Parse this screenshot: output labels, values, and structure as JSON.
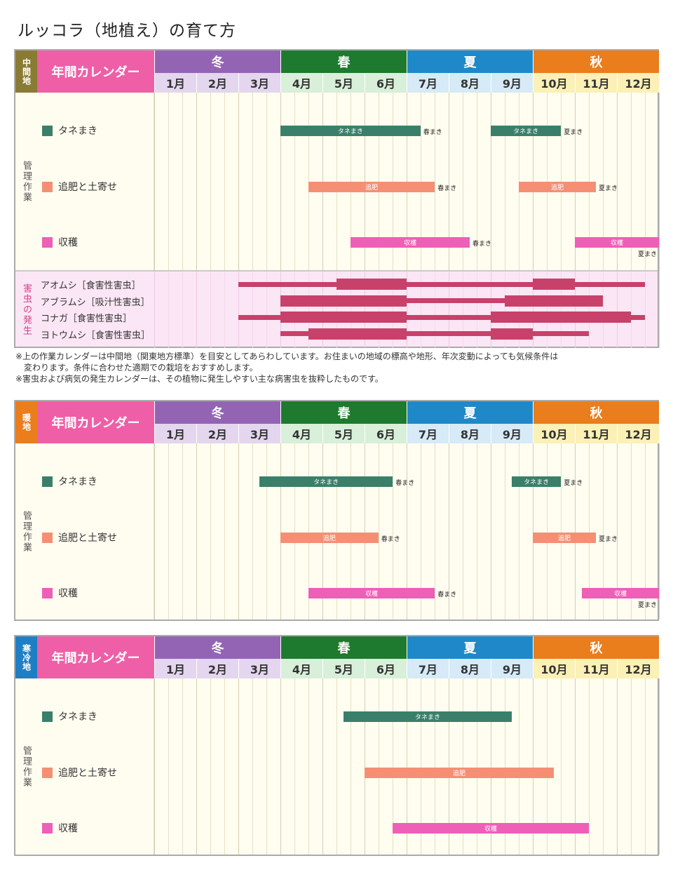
{
  "page_title": "ルッコラ（地植え）の育て方",
  "calendar_header": "年間カレンダー",
  "seasons": [
    {
      "label": "冬",
      "color": "#9464b4",
      "months": [
        1,
        2,
        3
      ]
    },
    {
      "label": "春",
      "color": "#1d7a2e",
      "months": [
        4,
        5,
        6
      ]
    },
    {
      "label": "夏",
      "color": "#1f88c8",
      "months": [
        7,
        8,
        9
      ]
    },
    {
      "label": "秋",
      "color": "#ea7d1c",
      "months": [
        10,
        11,
        12
      ]
    }
  ],
  "month_labels": [
    "1月",
    "2月",
    "3月",
    "4月",
    "5月",
    "6月",
    "7月",
    "8月",
    "9月",
    "10月",
    "11月",
    "12月"
  ],
  "month_bg": [
    "#e3d6ee",
    "#e3d6ee",
    "#e3d6ee",
    "#d8efd9",
    "#d8efd9",
    "#d8efd9",
    "#d6eaf7",
    "#d6eaf7",
    "#d6eaf7",
    "#fbf0b5",
    "#fbf0b5",
    "#fbf0b5"
  ],
  "side_label_tasks": "管理作業",
  "side_label_pests": "害虫の発生",
  "task_names": [
    "タネまき",
    "追肥と土寄せ",
    "収穫"
  ],
  "task_colors": [
    "#3a7f6a",
    "#f58f74",
    "#ee5fb7"
  ],
  "footnotes": [
    "※上の作業カレンダーは中間地（関東地方標準）を目安としてあらわしています。お住まいの地域の標高や地形、年次変動によっても気候条件は",
    "　変わります。条件に合わせた適期での栽培をおすすめします。",
    "※害虫および病気の発生カレンダーは、その植物に発生しやすい主な病害虫を抜粋したものです。"
  ],
  "chart_data": [
    {
      "type": "table",
      "region": "中間地",
      "region_color": "#8a7b34",
      "tasks": [
        {
          "name": "タネまき",
          "periods": [
            {
              "label": "タネまき",
              "start": 4.0,
              "end": 7.33,
              "note": "春まき"
            },
            {
              "label": "タネまき",
              "start": 9.0,
              "end": 10.67,
              "note": "夏まき"
            }
          ]
        },
        {
          "name": "追肥と土寄せ",
          "periods": [
            {
              "label": "追肥",
              "start": 4.67,
              "end": 7.67,
              "note": "春まき"
            },
            {
              "label": "追肥",
              "start": 9.67,
              "end": 11.5,
              "note": "夏まき"
            }
          ]
        },
        {
          "name": "収穫",
          "periods": [
            {
              "label": "収穫",
              "start": 5.67,
              "end": 8.5,
              "note": "春まき"
            },
            {
              "label": "収穫",
              "start": 11.0,
              "end": 13.0,
              "note": "夏まき"
            }
          ]
        }
      ],
      "pests": [
        {
          "name": "アオムシ［食害性害虫］",
          "ranges": [
            {
              "start": 3.0,
              "end": 12.67,
              "level": "low"
            },
            {
              "start": 5.33,
              "end": 7.0,
              "level": "high"
            },
            {
              "start": 10.0,
              "end": 11.0,
              "level": "high"
            }
          ]
        },
        {
          "name": "アブラムシ［吸汁性害虫］",
          "ranges": [
            {
              "start": 4.0,
              "end": 11.67,
              "level": "low"
            },
            {
              "start": 4.0,
              "end": 7.0,
              "level": "high"
            },
            {
              "start": 9.33,
              "end": 11.67,
              "level": "high"
            }
          ]
        },
        {
          "name": "コナガ［食害性害虫］",
          "ranges": [
            {
              "start": 3.0,
              "end": 12.67,
              "level": "low"
            },
            {
              "start": 4.0,
              "end": 7.0,
              "level": "high"
            },
            {
              "start": 9.0,
              "end": 12.33,
              "level": "high"
            }
          ]
        },
        {
          "name": "ヨトウムシ［食害性害虫］",
          "ranges": [
            {
              "start": 4.0,
              "end": 11.33,
              "level": "low"
            },
            {
              "start": 4.67,
              "end": 7.0,
              "level": "high"
            },
            {
              "start": 9.0,
              "end": 10.0,
              "level": "high"
            }
          ]
        }
      ]
    },
    {
      "type": "table",
      "region": "暖地",
      "region_color": "#ea7d1c",
      "tasks": [
        {
          "name": "タネまき",
          "periods": [
            {
              "label": "タネまき",
              "start": 3.5,
              "end": 6.67,
              "note": "春まき"
            },
            {
              "label": "タネまき",
              "start": 9.5,
              "end": 10.67,
              "note": "夏まき"
            }
          ]
        },
        {
          "name": "追肥と土寄せ",
          "periods": [
            {
              "label": "追肥",
              "start": 4.0,
              "end": 6.33,
              "note": "春まき"
            },
            {
              "label": "追肥",
              "start": 10.0,
              "end": 11.5,
              "note": "夏まき"
            }
          ]
        },
        {
          "name": "収穫",
          "periods": [
            {
              "label": "収穫",
              "start": 4.67,
              "end": 7.67,
              "note": "春まき"
            },
            {
              "label": "収穫",
              "start": 11.17,
              "end": 13.0,
              "note": "夏まき"
            }
          ]
        }
      ],
      "pests": []
    },
    {
      "type": "table",
      "region": "寒冷地",
      "region_color": "#1f7fc4",
      "tasks": [
        {
          "name": "タネまき",
          "periods": [
            {
              "label": "タネまき",
              "start": 5.5,
              "end": 9.5,
              "note": ""
            }
          ]
        },
        {
          "name": "追肥と土寄せ",
          "periods": [
            {
              "label": "追肥",
              "start": 6.0,
              "end": 10.5,
              "note": ""
            }
          ]
        },
        {
          "name": "収穫",
          "periods": [
            {
              "label": "収穫",
              "start": 6.67,
              "end": 11.33,
              "note": ""
            }
          ]
        }
      ],
      "pests": []
    }
  ]
}
